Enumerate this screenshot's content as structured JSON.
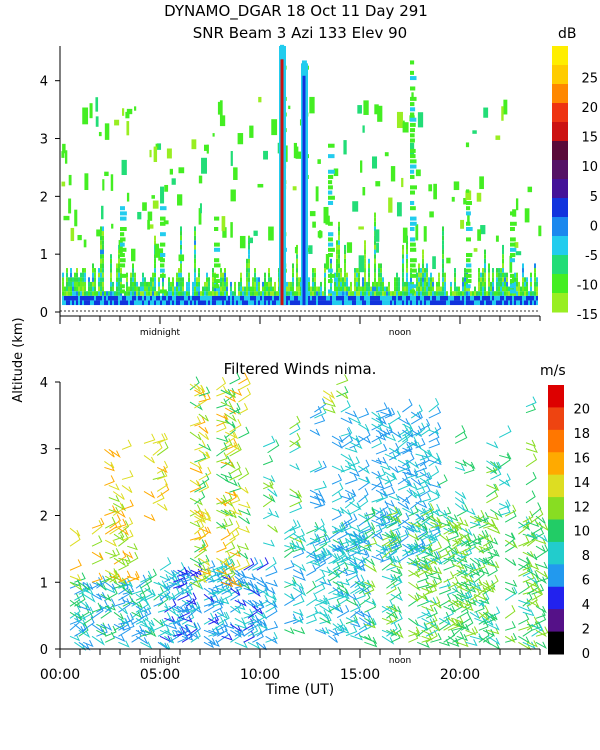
{
  "header": {
    "line1": "DYNAMO_DGAR  18 Oct 11 Day 291",
    "line2": "SNR Beam 3 Azi 133 Elev 90"
  },
  "ylabel": "Altitude (km)",
  "xlabel": "Time (UT)",
  "markers": {
    "midnight": "midnight",
    "noon": "noon"
  },
  "chart_data": [
    {
      "type": "heatmap",
      "title": "SNR Beam 3 Azi 133 Elev 90",
      "ylabel": "Altitude (km)",
      "ylim": [
        0,
        4.6
      ],
      "xlim_hours": [
        0,
        24
      ],
      "yticks": [
        "0",
        "1",
        "2",
        "3",
        "4"
      ],
      "colorbar": {
        "unit": "dB",
        "ticks": [
          "-15",
          "-10",
          "-5",
          "0",
          "5",
          "10",
          "15",
          "20",
          "25"
        ],
        "colors": [
          "#99ee22",
          "#44ee22",
          "#22dd77",
          "#22ccee",
          "#1a88ee",
          "#1133dd",
          "#441199",
          "#551166",
          "#5a0a3a",
          "#cc1111",
          "#ee3311",
          "#ff8800",
          "#ffcc00",
          "#ffee00"
        ]
      },
      "features": [
        {
          "x_hours": 11.1,
          "y_top_km": 4.6,
          "color": "#cc1111",
          "description": "strong vertical streak"
        },
        {
          "x_hours": 12.2,
          "y_top_km": 4.3,
          "color": "#1133dd",
          "description": "strong vertical streak"
        }
      ]
    },
    {
      "type": "scatter",
      "title": "Filtered Winds nima.",
      "xlabel": "Time (UT)",
      "ylabel": "Altitude (km)",
      "ylim": [
        0,
        4
      ],
      "xlim_hours": [
        0,
        24
      ],
      "xticks": [
        "00:00",
        "05:00",
        "10:00",
        "15:00",
        "20:00"
      ],
      "yticks": [
        "0",
        "1",
        "2",
        "3",
        "4"
      ],
      "colorbar": {
        "unit": "m/s",
        "ticks": [
          "0",
          "2",
          "4",
          "6",
          "8",
          "10",
          "12",
          "14",
          "16",
          "18",
          "20"
        ],
        "colors": [
          "#000000",
          "#551188",
          "#2222ee",
          "#2299ee",
          "#22cccc",
          "#22cc66",
          "#88dd22",
          "#dddd22",
          "#ffaa00",
          "#ff7700",
          "#ee4411",
          "#dd0000"
        ]
      }
    }
  ]
}
